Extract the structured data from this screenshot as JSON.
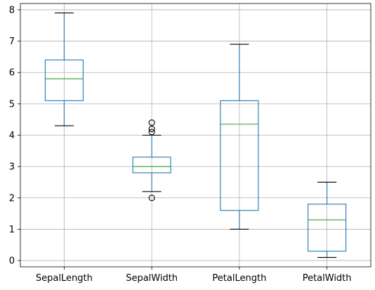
{
  "chart_data": {
    "type": "boxplot",
    "title": "",
    "xlabel": "",
    "ylabel": "",
    "ylim": [
      -0.2,
      8.2
    ],
    "yticks": [
      0,
      1,
      2,
      3,
      4,
      5,
      6,
      7,
      8
    ],
    "grid": true,
    "colors": {
      "box": "#1f77b4",
      "whisker": "#1f77b4",
      "cap": "#000000",
      "median": "#2ca02c",
      "flier": "#000000",
      "grid": "#b0b0b0"
    },
    "categories": [
      "SepalLength",
      "SepalWidth",
      "PetalLength",
      "PetalWidth"
    ],
    "boxes": [
      {
        "category": "SepalLength",
        "whisker_low": 4.3,
        "q1": 5.1,
        "median": 5.8,
        "q3": 6.4,
        "whisker_high": 7.9,
        "fliers": []
      },
      {
        "category": "SepalWidth",
        "whisker_low": 2.2,
        "q1": 2.8,
        "median": 3.0,
        "q3": 3.3,
        "whisker_high": 4.0,
        "fliers": [
          2.0,
          4.1,
          4.2,
          4.4
        ]
      },
      {
        "category": "PetalLength",
        "whisker_low": 1.0,
        "q1": 1.6,
        "median": 4.35,
        "q3": 5.1,
        "whisker_high": 6.9,
        "fliers": []
      },
      {
        "category": "PetalWidth",
        "whisker_low": 0.1,
        "q1": 0.3,
        "median": 1.3,
        "q3": 1.8,
        "whisker_high": 2.5,
        "fliers": []
      }
    ]
  }
}
